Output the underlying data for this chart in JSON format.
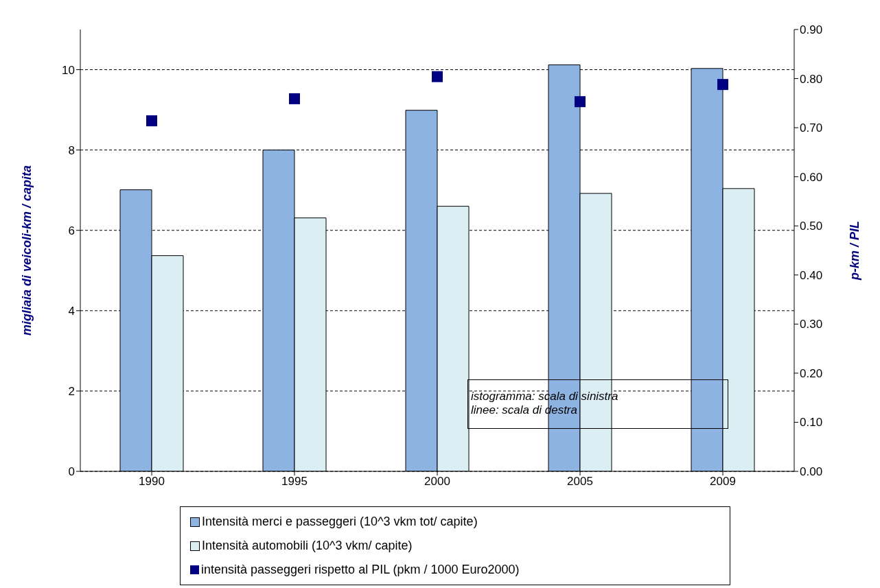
{
  "chart_data": {
    "type": "bar",
    "ylabel": "migliaia di veicoli-km / capita",
    "y2label": "p-km / PIL",
    "categories": [
      "1990",
      "1995",
      "2000",
      "2005",
      "2009"
    ],
    "series": [
      {
        "name": "Intensità merci e passeggeri  (10^3 vkm tot/ capite)",
        "color": "#8db3e2",
        "values": [
          7.01,
          8.0,
          8.99,
          10.12,
          10.03
        ]
      },
      {
        "name": "Intensità automobili (10^3 vkm/ capite)",
        "color": "#dbeef4",
        "values": [
          5.37,
          6.31,
          6.6,
          6.92,
          7.04
        ]
      },
      {
        "name": "intensità passeggeri  rispetto al PIL (pkm / 1000 Euro2000)",
        "type": "scatter",
        "axis": "y2",
        "color": "#000080",
        "values": [
          0.714,
          0.759,
          0.804,
          0.753,
          0.788
        ]
      }
    ],
    "ylim": [
      0,
      11
    ],
    "yticks": [
      0,
      2,
      4,
      6,
      8,
      10
    ],
    "y2lim": [
      0,
      0.9
    ],
    "y2ticks": [
      {
        "value": 0,
        "label": "0.00"
      },
      {
        "value": 0.1,
        "label": "0.10"
      },
      {
        "value": 0.2,
        "label": "0.20"
      },
      {
        "value": 0.3,
        "label": "0.30"
      },
      {
        "value": 0.4,
        "label": "0.40"
      },
      {
        "value": 0.5,
        "label": "0.50"
      },
      {
        "value": 0.6,
        "label": "0.60"
      },
      {
        "value": 0.7,
        "label": "0.70"
      },
      {
        "value": 0.8,
        "label": "0.80"
      },
      {
        "value": 0.9,
        "label": "0.90"
      }
    ],
    "grid": "y",
    "legend": "bottom",
    "marker": "square",
    "annotations": [
      "istogramma: scala di sinistra",
      "linee: scala di destra"
    ]
  }
}
